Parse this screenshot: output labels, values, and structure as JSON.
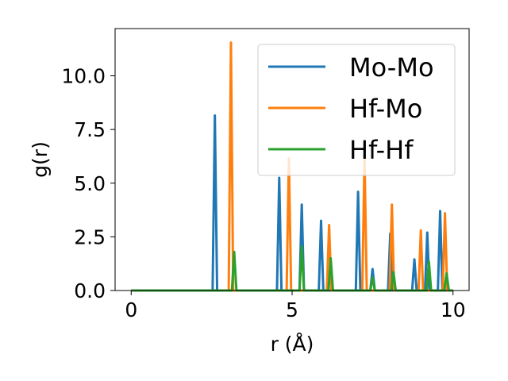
{
  "chart_data": {
    "type": "line",
    "title": "",
    "xlabel": "r (Å)",
    "ylabel": "g(r)",
    "xlim": [
      -0.5,
      10.5
    ],
    "ylim": [
      0,
      12.2
    ],
    "xticks": [
      0,
      5,
      10
    ],
    "yticks": [
      0.0,
      2.5,
      5.0,
      7.5,
      10.0
    ],
    "xtick_labels": [
      "0",
      "5",
      "10"
    ],
    "ytick_labels": [
      "0.0",
      "2.5",
      "5.0",
      "7.5",
      "10.0"
    ],
    "grid": false,
    "legend_position": "top-right",
    "series": [
      {
        "name": "Mo-Mo",
        "color": "#1f77b4",
        "peaks": [
          [
            2.6,
            8.15
          ],
          [
            4.6,
            5.25
          ],
          [
            5.3,
            4.0
          ],
          [
            5.9,
            3.25
          ],
          [
            7.05,
            4.6
          ],
          [
            7.5,
            1.0
          ],
          [
            8.05,
            2.65
          ],
          [
            8.8,
            1.45
          ],
          [
            9.2,
            2.7
          ],
          [
            9.6,
            3.7
          ]
        ]
      },
      {
        "name": "Hf-Mo",
        "color": "#ff7f0e",
        "peaks": [
          [
            3.1,
            11.55
          ],
          [
            4.9,
            6.15
          ],
          [
            6.15,
            3.05
          ],
          [
            7.25,
            6.2
          ],
          [
            8.1,
            4.0
          ],
          [
            9.0,
            2.8
          ],
          [
            9.75,
            3.6
          ]
        ]
      },
      {
        "name": "Hf-Hf",
        "color": "#2ca02c",
        "peaks": [
          [
            3.2,
            1.8
          ],
          [
            5.3,
            2.05
          ],
          [
            6.2,
            1.5
          ],
          [
            7.5,
            0.6
          ],
          [
            8.15,
            0.85
          ],
          [
            9.25,
            1.35
          ],
          [
            9.8,
            0.8
          ]
        ]
      }
    ]
  }
}
